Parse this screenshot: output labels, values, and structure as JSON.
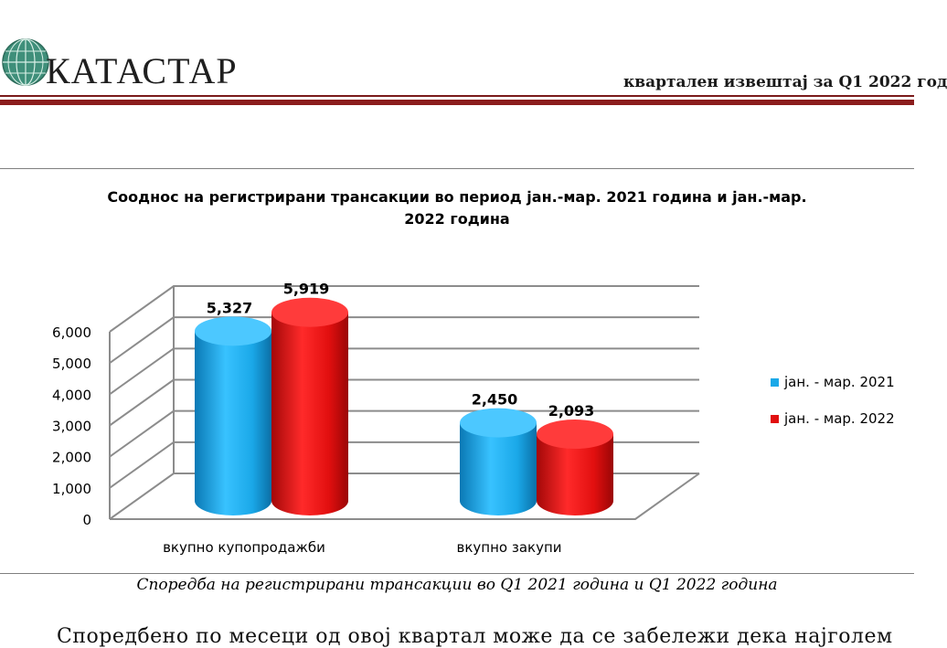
{
  "header": {
    "logo_text": "КАТАСТАР",
    "report_title": "квартален извештај за Q1 2022 год"
  },
  "caption": "Споредба на регистрирани трансакции во Q1 2021 година и Q1 2022 година",
  "body_text": "Споредбено по месеци од овој квартал може да се забележи дека најголем",
  "colors": {
    "series_2021": "#1aa8e8",
    "series_2022": "#e10f0f",
    "header_rule": "#8b1d1d"
  },
  "chart_data": {
    "type": "bar",
    "title": "Соoднос на регистрирани трансакции во период јан.-мар. 2021 година и јан.-мар. 2022 година",
    "categories": [
      "вкупно купопродажби",
      "вкупно закупи"
    ],
    "series": [
      {
        "name": "јан. - мар. 2021",
        "values": [
          5327,
          2450
        ],
        "labels": [
          "5,327",
          "2,450"
        ]
      },
      {
        "name": "јан. - мар. 2022",
        "values": [
          5919,
          2093
        ],
        "labels": [
          "5,919",
          "2,093"
        ]
      }
    ],
    "yticks": [
      "0",
      "1,000",
      "2,000",
      "3,000",
      "4,000",
      "5,000",
      "6,000"
    ],
    "ylim": [
      0,
      6000
    ],
    "grid": true,
    "legend": "right",
    "style": "3d-cylinder"
  }
}
